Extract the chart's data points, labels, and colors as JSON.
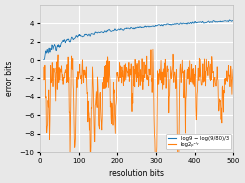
{
  "title": "",
  "xlabel": "resolution bits",
  "ylabel": "error bits",
  "xlim": [
    0,
    500
  ],
  "ylim": [
    -10,
    6
  ],
  "yticks": [
    -10,
    -8,
    -6,
    -4,
    -2,
    0,
    2,
    4
  ],
  "xticks": [
    0,
    100,
    200,
    300,
    400,
    500
  ],
  "legend": [
    {
      "label": "log9 − log(9/80)/3",
      "color": "#1f77b4"
    },
    {
      "label": "log2ₚᵒˡʸ",
      "color": "#ff7f0e"
    }
  ],
  "line1_color": "#1f77b4",
  "line2_color": "#ff7f0e",
  "background_color": "#e8e8e8",
  "axes_background": "#e8e8e8",
  "grid_color": "white",
  "seed": 12345,
  "n_points": 490,
  "x_start": 10
}
